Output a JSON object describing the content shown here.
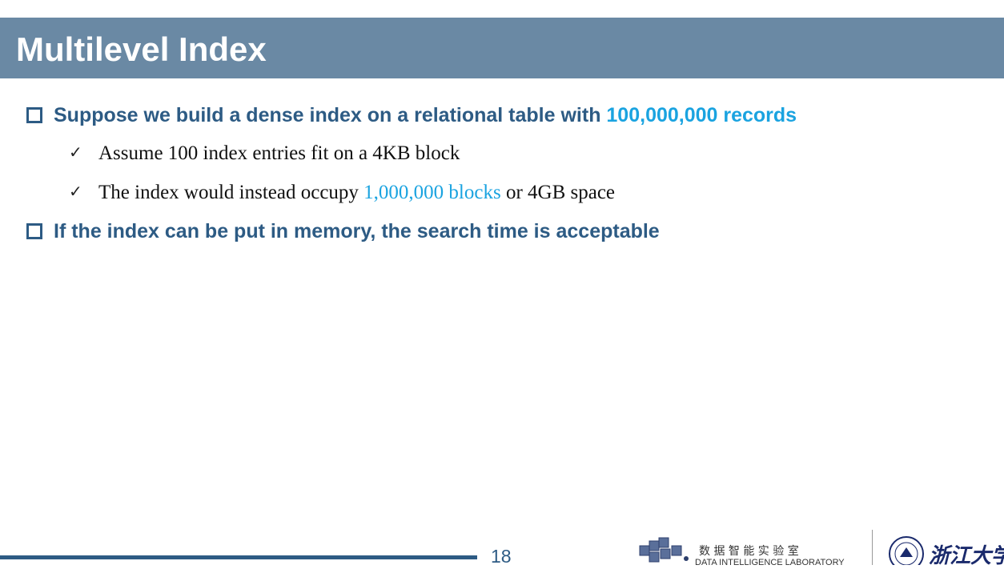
{
  "header": {
    "title": "Multilevel Index"
  },
  "bullets": [
    {
      "parts": [
        "Suppose we build a dense index on a relational table with ",
        "100,000,000 records"
      ],
      "sub": [
        {
          "parts": [
            "Assume 100 index entries fit on a 4KB block"
          ]
        },
        {
          "parts": [
            "The index would instead occupy ",
            "1,000,000 blocks",
            " or 4GB space"
          ]
        }
      ]
    },
    {
      "parts": [
        "If the index can be put in memory, the search time is acceptable"
      ]
    }
  ],
  "footer": {
    "page": "18",
    "lab_cn": "数 据 智 能 实 验 室",
    "lab_en": "DATA INTELLIGENCE LABORATORY",
    "university": "浙江大学"
  }
}
